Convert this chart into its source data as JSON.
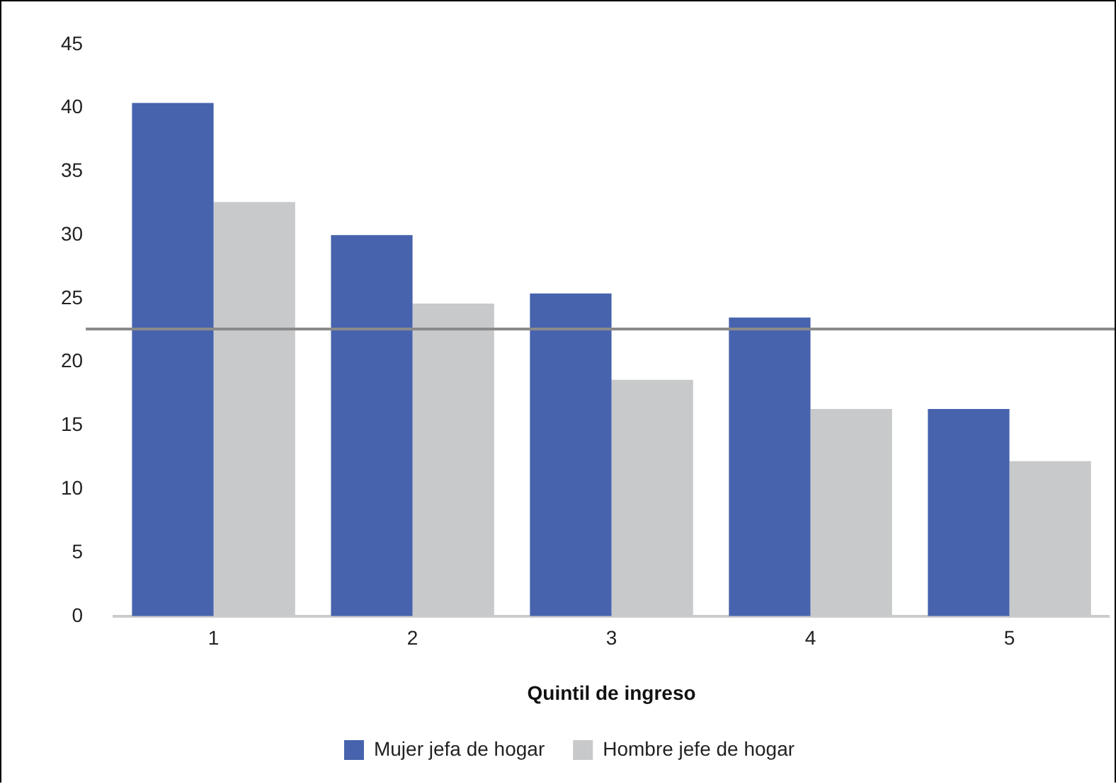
{
  "chart_data": {
    "type": "bar",
    "xlabel": "Quintil de ingreso",
    "categories": [
      "1",
      "2",
      "3",
      "4",
      "5"
    ],
    "series": [
      {
        "name": "Mujer jefa de hogar",
        "color": "#4763ad",
        "values": [
          40.4,
          30.0,
          25.4,
          23.5,
          16.3
        ]
      },
      {
        "name": "Hombre jefe de hogar",
        "color": "#c8c9cb",
        "values": [
          32.6,
          24.6,
          18.6,
          16.3,
          12.2
        ]
      }
    ],
    "ylim": [
      0,
      45
    ],
    "yticks": [
      0,
      5,
      10,
      15,
      20,
      25,
      30,
      35,
      40,
      45
    ],
    "grid": false,
    "legend": "bottom",
    "ref_lines": [
      {
        "axis": "y",
        "value": 22.6,
        "color": "#8a8a8a"
      }
    ]
  }
}
